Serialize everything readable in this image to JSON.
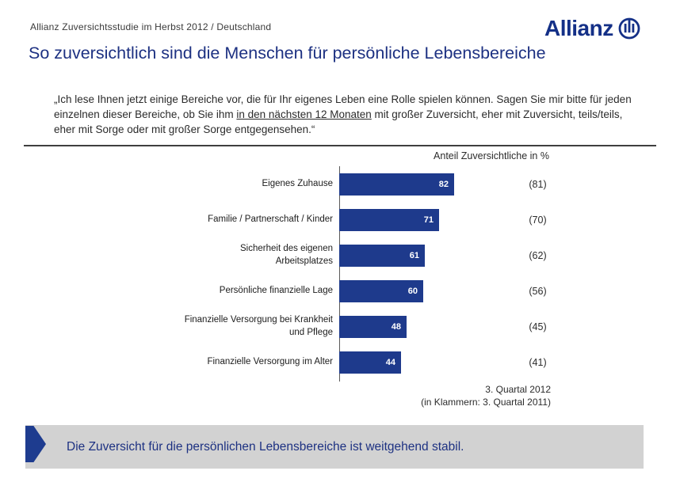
{
  "header": {
    "study_label": "Allianz Zuversichtsstudie im Herbst 2012 / Deutschland",
    "brand": "Allianz"
  },
  "title": "So zuversichtlich sind die Menschen für persönliche Lebensbereiche",
  "question": {
    "pre": "„Ich lese Ihnen jetzt einige Bereiche vor, die für Ihr eigenes Leben eine Rolle spielen können. Sagen Sie mir bitte für jeden einzelnen dieser Bereiche, ob Sie ihm ",
    "underlined": "in den nächsten 12 Monaten",
    "post": " mit großer Zuversicht, eher mit Zuversicht, teils/teils, eher mit Sorge oder mit großer Sorge entgegensehen.“"
  },
  "chart_data": {
    "type": "bar",
    "orientation": "horizontal",
    "title": "Anteil Zuversichtliche in %",
    "categories": [
      "Eigenes Zuhause",
      "Familie / Partnerschaft / Kinder",
      "Sicherheit des eigenen Arbeitsplatzes",
      "Persönliche finanzielle Lage",
      "Finanzielle Versorgung bei Krankheit und Pflege",
      "Finanzielle Versorgung im Alter"
    ],
    "series": [
      {
        "name": "3. Quartal 2012",
        "values": [
          82,
          71,
          61,
          60,
          48,
          44
        ]
      },
      {
        "name": "3. Quartal 2011",
        "values": [
          81,
          70,
          62,
          56,
          45,
          41
        ]
      }
    ],
    "values_2011_display": [
      "(81)",
      "(70)",
      "(62)",
      "(56)",
      "(45)",
      "(41)"
    ],
    "xlim": [
      0,
      100
    ],
    "bar_color": "#1e3a8c",
    "legend": false,
    "grid": false
  },
  "footnote": {
    "line1": "3. Quartal 2012",
    "line2": "(in Klammern: 3. Quartal 2011)"
  },
  "takeaway": {
    "text": "Die Zuversicht für die persönlichen Lebensbereiche ist weitgehend stabil.",
    "box_bg": "#d2d2d2",
    "arrow_color": "#1e3c8f",
    "text_color": "#1d3182"
  },
  "colors": {
    "brand_navy": "#143087",
    "title_navy": "#1d3182",
    "bar_blue": "#1e3a8c",
    "divider": "#3f3f3f",
    "axis": "#595959"
  }
}
